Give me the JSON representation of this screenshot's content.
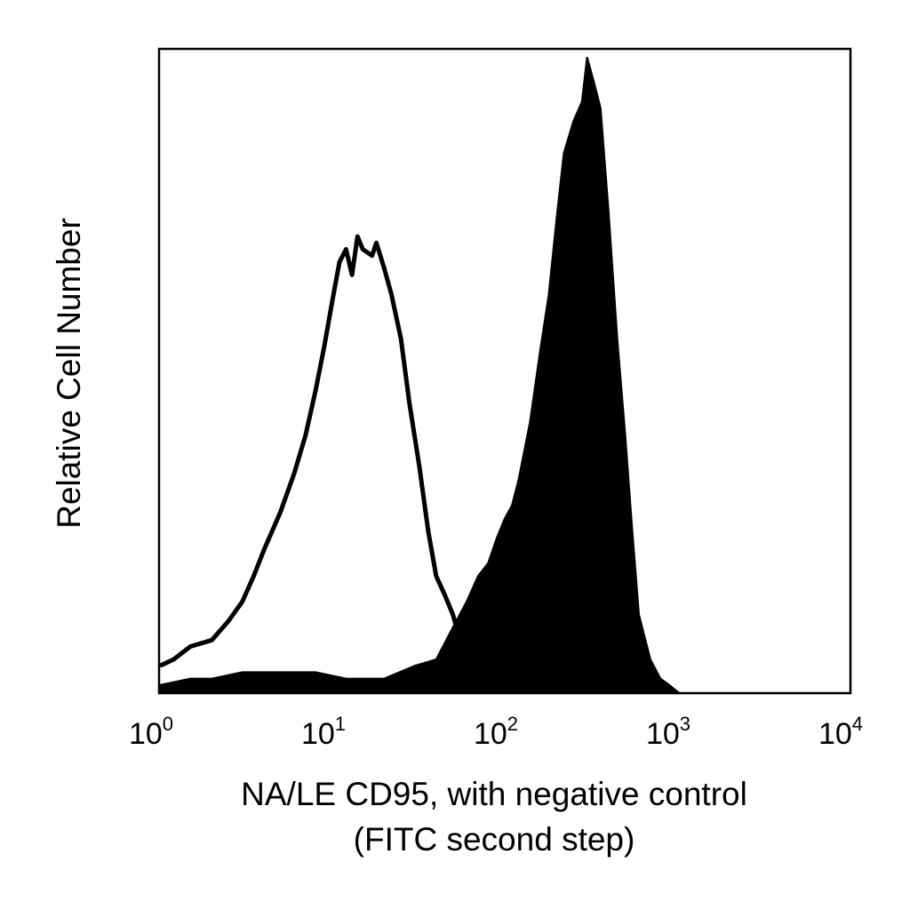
{
  "chart_data": {
    "type": "area",
    "xlabel_line1": "NA/LE CD95, with negative control",
    "xlabel_line2": "(FITC second step)",
    "ylabel": "Relative Cell Number",
    "x_scale": "log",
    "xlim": [
      1,
      10000
    ],
    "ylim": [
      0,
      1.0
    ],
    "grid": false,
    "legend": "none",
    "x_ticks": [
      {
        "base": "10",
        "exp": "0",
        "value": 1
      },
      {
        "base": "10",
        "exp": "1",
        "value": 10
      },
      {
        "base": "10",
        "exp": "2",
        "value": 100
      },
      {
        "base": "10",
        "exp": "3",
        "value": 1000
      },
      {
        "base": "10",
        "exp": "4",
        "value": 10000
      }
    ],
    "series": [
      {
        "style": "outline",
        "color": "#000000",
        "x": [
          1.0,
          1.2,
          1.5,
          2.0,
          2.5,
          3.0,
          3.5,
          4.0,
          5.0,
          6.0,
          7.0,
          8.0,
          9.0,
          10.0,
          11.0,
          12.0,
          13.0,
          14.0,
          15.0,
          17.0,
          18.0,
          20.0,
          22.0,
          25.0,
          28.0,
          32.0,
          36.0,
          40.0,
          45.0,
          50.0,
          55.0
        ],
        "y": [
          0.04,
          0.05,
          0.07,
          0.08,
          0.11,
          0.14,
          0.18,
          0.22,
          0.28,
          0.34,
          0.4,
          0.47,
          0.54,
          0.61,
          0.67,
          0.69,
          0.65,
          0.71,
          0.69,
          0.68,
          0.7,
          0.66,
          0.62,
          0.55,
          0.45,
          0.35,
          0.25,
          0.18,
          0.15,
          0.12,
          0.08
        ]
      },
      {
        "style": "filled",
        "color": "#000000",
        "x": [
          1.0,
          1.5,
          2.0,
          3.0,
          5.0,
          8.0,
          12.0,
          20.0,
          30.0,
          40.0,
          50.0,
          60.0,
          70.0,
          80.0,
          90.0,
          100.0,
          110.0,
          120.0,
          140.0,
          160.0,
          180.0,
          200.0,
          220.0,
          250.0,
          280.0,
          300.0,
          330.0,
          360.0,
          400.0,
          450.0,
          500.0,
          550.0,
          600.0,
          700.0,
          800.0,
          900.0,
          1000.0
        ],
        "y": [
          0.01,
          0.02,
          0.02,
          0.03,
          0.03,
          0.03,
          0.02,
          0.02,
          0.04,
          0.05,
          0.1,
          0.14,
          0.18,
          0.2,
          0.24,
          0.27,
          0.29,
          0.33,
          0.42,
          0.53,
          0.62,
          0.74,
          0.84,
          0.89,
          0.92,
          0.99,
          0.95,
          0.91,
          0.75,
          0.55,
          0.4,
          0.25,
          0.12,
          0.05,
          0.02,
          0.01,
          0.0
        ]
      }
    ]
  }
}
